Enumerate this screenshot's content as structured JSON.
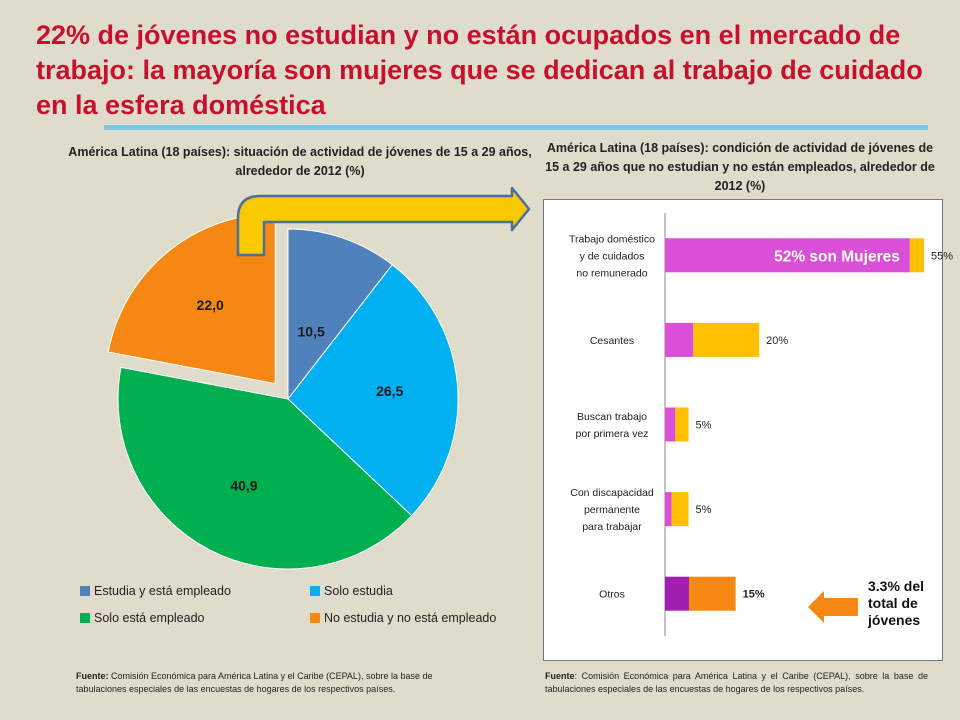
{
  "title": "22% de jóvenes no estudian y no están ocupados en el mercado de trabajo: la mayoría son mujeres que se dedican al trabajo de cuidado en la esfera doméstica",
  "colors": {
    "title": "#c8102e",
    "blue": "#4f81bd",
    "cyan": "#00b0f0",
    "green": "#00b050",
    "orange": "#f68712",
    "magenta": "#d94fd8",
    "dark_magenta": "#a31fb0",
    "yellow": "#ffc000"
  },
  "chart_data": [
    {
      "type": "pie",
      "title": "América Latina (18 países): situación de actividad de jóvenes de 15 a 29 años, alrededor de 2012 (%)",
      "slices": [
        {
          "label": "Estudia y está empleado",
          "value": 10.5,
          "display": "10,5",
          "color": "#4f81bd"
        },
        {
          "label": "Solo estudia",
          "value": 26.5,
          "display": "26,5",
          "color": "#00b0f0"
        },
        {
          "label": "Solo está empleado",
          "value": 40.9,
          "display": "40,9",
          "color": "#00b050"
        },
        {
          "label": "No estudia y no está empleado",
          "value": 22.0,
          "display": "22,0",
          "color": "#f68712",
          "exploded": true
        }
      ],
      "legend": "bottom"
    },
    {
      "type": "bar",
      "orientation": "horizontal",
      "stacked": true,
      "title": "América Latina (18 países): condición de actividad de jóvenes de 15 a 29 años que no estudian y no están empleados, alrededor de 2012  (%)",
      "categories": [
        [
          "Trabajo doméstico",
          "y de cuidados",
          "no remunerado"
        ],
        [
          "Cesantes"
        ],
        [
          "Buscan trabajo",
          "por primera vez"
        ],
        [
          "Con discapacidad",
          "permanente",
          "para trabajar"
        ],
        [
          "Otros"
        ]
      ],
      "series": [
        {
          "values": [
            52,
            6,
            2.2,
            1.4,
            5.1
          ],
          "colors": [
            "#d94fd8",
            "#d94fd8",
            "#d94fd8",
            "#d94fd8",
            "#a31fb0"
          ]
        },
        {
          "values": [
            3,
            14,
            2.8,
            3.6,
            9.9
          ],
          "colors": [
            "#ffc000",
            "#ffc000",
            "#ffc000",
            "#ffc000",
            "#f68712"
          ]
        }
      ],
      "totals": [
        "55%",
        "20%",
        "5%",
        "5%",
        "15%"
      ],
      "annotation": "52% son Mujeres",
      "xlim": [
        0,
        60
      ]
    }
  ],
  "note": "3.3% del total de jóvenes",
  "sources": {
    "left_label": "Fuente:",
    "left_text": " Comisión Económica para América Latina y el Caribe (CEPAL), sobre la base de tabulaciones especiales de las encuestas de hogares de los respectivos países.",
    "right_label": "Fuente",
    "right_text": ": Comisión Económica para América Latina y el Caribe (CEPAL), sobre la base de tabulaciones especiales de las encuestas de hogares de los respectivos países."
  }
}
